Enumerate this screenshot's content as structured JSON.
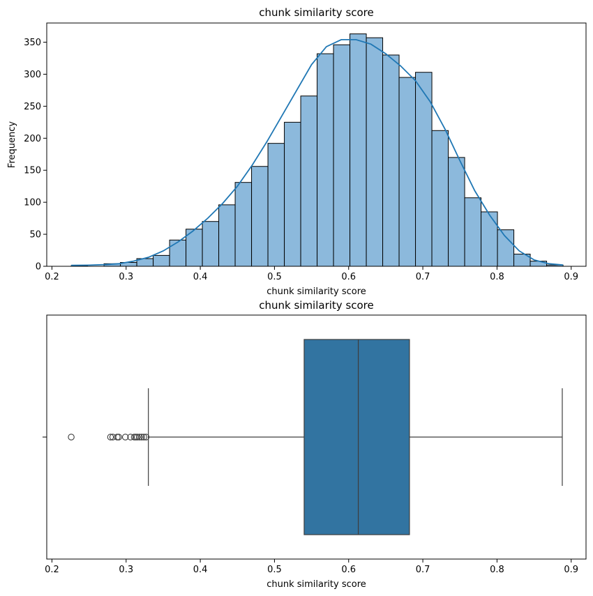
{
  "chart_data": [
    {
      "type": "histogram",
      "title": "chunk similarity score",
      "xlabel": "chunk similarity score",
      "ylabel": "Frequency",
      "xlim": [
        0.193,
        0.92
      ],
      "ylim": [
        0,
        380
      ],
      "xticks": [
        0.2,
        0.3,
        0.4,
        0.5,
        0.6,
        0.7,
        0.8,
        0.9
      ],
      "xtick_labels": [
        "0.2",
        "0.3",
        "0.4",
        "0.5",
        "0.6",
        "0.7",
        "0.8",
        "0.9"
      ],
      "yticks": [
        0,
        50,
        100,
        150,
        200,
        250,
        300,
        350
      ],
      "ytick_labels": [
        "0",
        "50",
        "100",
        "150",
        "200",
        "250",
        "300",
        "350"
      ],
      "bin_edges": [
        0.226,
        0.2481,
        0.2702,
        0.2923,
        0.3144,
        0.3365,
        0.3586,
        0.3807,
        0.4028,
        0.4249,
        0.447,
        0.4691,
        0.4912,
        0.5133,
        0.5354,
        0.5575,
        0.5796,
        0.6017,
        0.6238,
        0.6459,
        0.668,
        0.6901,
        0.7122,
        0.7343,
        0.7564,
        0.7785,
        0.8006,
        0.8227,
        0.8448,
        0.8669,
        0.889
      ],
      "counts": [
        1,
        0,
        4,
        6,
        12,
        17,
        41,
        58,
        70,
        96,
        131,
        156,
        192,
        225,
        266,
        332,
        346,
        363,
        357,
        330,
        295,
        303,
        212,
        170,
        107,
        85,
        57,
        19,
        8,
        2
      ],
      "bar_color": "#8cb9dc",
      "edge_color": "#000000",
      "kde": {
        "color": "#1f77b4",
        "x": [
          0.226,
          0.25,
          0.27,
          0.29,
          0.31,
          0.33,
          0.35,
          0.37,
          0.39,
          0.41,
          0.43,
          0.45,
          0.47,
          0.49,
          0.51,
          0.53,
          0.55,
          0.57,
          0.59,
          0.61,
          0.63,
          0.65,
          0.67,
          0.69,
          0.71,
          0.73,
          0.75,
          0.77,
          0.79,
          0.81,
          0.83,
          0.85,
          0.87,
          0.889
        ],
        "y": [
          1.5,
          1.8,
          2.5,
          4,
          8,
          14,
          24,
          38,
          55,
          75,
          98,
          125,
          158,
          195,
          235,
          275,
          315,
          343,
          354,
          354,
          347,
          332,
          313,
          290,
          257,
          214,
          165,
          118,
          80,
          48,
          24,
          10,
          4,
          2
        ]
      }
    },
    {
      "type": "boxplot",
      "title": "chunk similarity score",
      "xlabel": "chunk similarity score",
      "xlim": [
        0.193,
        0.92
      ],
      "xticks": [
        0.2,
        0.3,
        0.4,
        0.5,
        0.6,
        0.7,
        0.8,
        0.9
      ],
      "xtick_labels": [
        "0.2",
        "0.3",
        "0.4",
        "0.5",
        "0.6",
        "0.7",
        "0.8",
        "0.9"
      ],
      "box_color": "#3274a1",
      "line_color": "#3d3d3d",
      "whisker_low": 0.33,
      "q1": 0.54,
      "median": 0.613,
      "q3": 0.682,
      "whisker_high": 0.888,
      "outliers": [
        0.226,
        0.279,
        0.282,
        0.288,
        0.29,
        0.299,
        0.306,
        0.311,
        0.313,
        0.315,
        0.318,
        0.321,
        0.324,
        0.327
      ]
    }
  ]
}
